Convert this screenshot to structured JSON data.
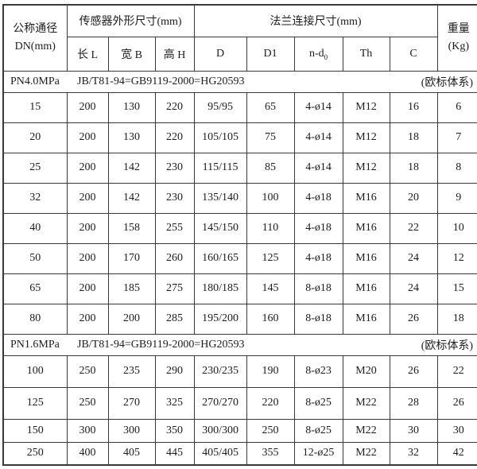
{
  "table": {
    "header": {
      "dn_line1": "公称通径",
      "dn_line2": "DN(mm)",
      "sensor_group": "传感器外形尺寸(mm)",
      "flange_group": "法兰连接尺寸(mm)",
      "weight_line1": "重量",
      "weight_line2": "(Kg)",
      "col_length": "长 L",
      "col_width": "宽 B",
      "col_height": "高 H",
      "col_d": "D",
      "col_d1": "D1",
      "col_nd": "n-d",
      "col_nd_subscript": "0",
      "col_th": "Th",
      "col_c": "C"
    },
    "sections": [
      {
        "pressure": "PN4.0MPa",
        "standard": "JB/T81-94=GB9119-2000=HG20593",
        "note": "(欧标体系)",
        "rows": [
          [
            "15",
            "200",
            "130",
            "220",
            "95/95",
            "65",
            "4-ø14",
            "M12",
            "16",
            "6"
          ],
          [
            "20",
            "200",
            "130",
            "220",
            "105/105",
            "75",
            "4-ø14",
            "M12",
            "18",
            "7"
          ],
          [
            "25",
            "200",
            "142",
            "230",
            "115/115",
            "85",
            "4-ø14",
            "M12",
            "18",
            "8"
          ],
          [
            "32",
            "200",
            "142",
            "230",
            "135/140",
            "100",
            "4-ø18",
            "M16",
            "20",
            "9"
          ],
          [
            "40",
            "200",
            "158",
            "255",
            "145/150",
            "110",
            "4-ø18",
            "M16",
            "22",
            "10"
          ],
          [
            "50",
            "200",
            "170",
            "260",
            "160/165",
            "125",
            "4-ø18",
            "M16",
            "24",
            "12"
          ],
          [
            "65",
            "200",
            "185",
            "275",
            "180/185",
            "145",
            "8-ø18",
            "M16",
            "24",
            "15"
          ],
          [
            "80",
            "200",
            "200",
            "285",
            "195/200",
            "160",
            "8-ø18",
            "M16",
            "26",
            "18"
          ]
        ]
      },
      {
        "pressure": "PN1.6MPa",
        "standard": "JB/T81-94=GB9119-2000=HG20593",
        "note": "(欧标体系)",
        "rows": [
          [
            "100",
            "250",
            "235",
            "290",
            "230/235",
            "190",
            "8-ø23",
            "M20",
            "26",
            "22"
          ],
          [
            "125",
            "250",
            "270",
            "325",
            "270/270",
            "220",
            "8-ø25",
            "M22",
            "28",
            "26"
          ],
          [
            "150",
            "300",
            "300",
            "350",
            "300/300",
            "250",
            "8-ø25",
            "M22",
            "30",
            "30"
          ],
          [
            "250",
            "400",
            "405",
            "445",
            "405/405",
            "355",
            "12-ø25",
            "M22",
            "32",
            "42"
          ]
        ]
      }
    ]
  }
}
